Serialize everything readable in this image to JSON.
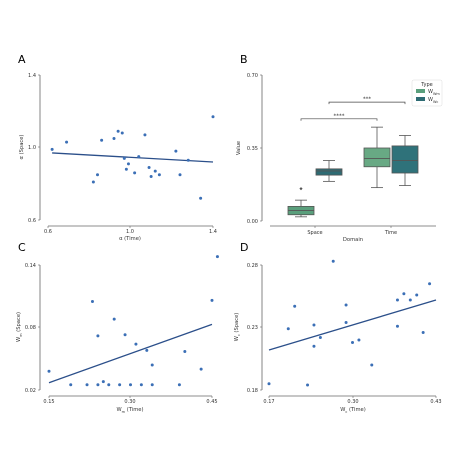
{
  "colors": {
    "point": "#3b6fb6",
    "line": "#2b4f8a",
    "axis": "#666666",
    "box_space_wm": "#5a9f7c",
    "box_space_wc": "#2e6b73",
    "box_time_wm": "#68a984",
    "box_time_wc": "#2f727a",
    "whisker": "#555555"
  },
  "chart_data": [
    {
      "panel": "A",
      "type": "scatter",
      "xlabel": "α (Time)",
      "ylabel": "α (Space)",
      "xlim": [
        0.6,
        1.4
      ],
      "ylim": [
        0.6,
        1.4
      ],
      "xticks": [
        0.6,
        1.0,
        1.4
      ],
      "yticks": [
        0.6,
        1.0,
        1.4
      ],
      "tick_labels_x": [
        "0.6",
        "1.0",
        "1.4"
      ],
      "tick_labels_y": [
        "0.6",
        "1.0",
        "1.4"
      ],
      "points": [
        [
          0.62,
          0.99
        ],
        [
          0.69,
          1.03
        ],
        [
          0.82,
          0.81
        ],
        [
          0.84,
          0.85
        ],
        [
          0.86,
          1.04
        ],
        [
          0.92,
          1.05
        ],
        [
          0.94,
          1.09
        ],
        [
          0.96,
          1.08
        ],
        [
          0.97,
          0.94
        ],
        [
          0.98,
          0.88
        ],
        [
          0.99,
          0.91
        ],
        [
          1.02,
          0.86
        ],
        [
          1.04,
          0.95
        ],
        [
          1.07,
          1.07
        ],
        [
          1.09,
          0.89
        ],
        [
          1.1,
          0.84
        ],
        [
          1.12,
          0.87
        ],
        [
          1.14,
          0.85
        ],
        [
          1.22,
          0.98
        ],
        [
          1.24,
          0.85
        ],
        [
          1.28,
          0.93
        ],
        [
          1.34,
          0.72
        ],
        [
          1.4,
          1.17
        ]
      ],
      "fit_line": [
        [
          0.62,
          0.97
        ],
        [
          1.4,
          0.92
        ]
      ]
    },
    {
      "panel": "B",
      "type": "box",
      "xlabel": "Domain",
      "ylabel": "Value",
      "ylim": [
        0,
        0.7
      ],
      "yticks": [
        0.0,
        0.35,
        0.7
      ],
      "tick_labels_y": [
        "0.00",
        "0.35",
        "0.70"
      ],
      "categories": [
        "Space",
        "Time"
      ],
      "legend": {
        "title": "Type",
        "entries": [
          "Wm",
          "Wc"
        ],
        "position": "top-right"
      },
      "series": [
        {
          "name": "Wm",
          "boxes": [
            {
              "category": "Space",
              "whislo": 0.02,
              "q1": 0.03,
              "med": 0.05,
              "q3": 0.07,
              "whishi": 0.1,
              "fliers": [
                0.155
              ]
            },
            {
              "category": "Time",
              "whislo": 0.16,
              "q1": 0.26,
              "med": 0.3,
              "q3": 0.35,
              "whishi": 0.45,
              "fliers": []
            }
          ]
        },
        {
          "name": "Wc",
          "boxes": [
            {
              "category": "Space",
              "whislo": 0.19,
              "q1": 0.22,
              "med": 0.24,
              "q3": 0.25,
              "whishi": 0.29,
              "fliers": []
            },
            {
              "category": "Time",
              "whislo": 0.17,
              "q1": 0.23,
              "med": 0.29,
              "q3": 0.36,
              "whishi": 0.41,
              "fliers": []
            }
          ]
        }
      ],
      "annotations": [
        {
          "text": "****",
          "from": "Space-Wm",
          "to": "Time-Wm",
          "y": 0.49
        },
        {
          "text": "***",
          "from": "Space-Wc",
          "to": "Time-Wc",
          "y": 0.57
        }
      ]
    },
    {
      "panel": "C",
      "type": "scatter",
      "xlabel": "Wm (Time)",
      "ylabel": "Wm (Space)",
      "xlim": [
        0.15,
        0.45
      ],
      "ylim": [
        0.02,
        0.14
      ],
      "xticks": [
        0.15,
        0.3,
        0.45
      ],
      "yticks": [
        0.02,
        0.08,
        0.14
      ],
      "tick_labels_x": [
        "0.15",
        "0.30",
        "0.45"
      ],
      "tick_labels_y": [
        "0.02",
        "0.08",
        "0.14"
      ],
      "points": [
        [
          0.15,
          0.038
        ],
        [
          0.19,
          0.025
        ],
        [
          0.22,
          0.025
        ],
        [
          0.23,
          0.105
        ],
        [
          0.24,
          0.025
        ],
        [
          0.24,
          0.072
        ],
        [
          0.25,
          0.028
        ],
        [
          0.26,
          0.025
        ],
        [
          0.27,
          0.088
        ],
        [
          0.28,
          0.025
        ],
        [
          0.29,
          0.073
        ],
        [
          0.3,
          0.025
        ],
        [
          0.31,
          0.064
        ],
        [
          0.32,
          0.025
        ],
        [
          0.33,
          0.058
        ],
        [
          0.34,
          0.025
        ],
        [
          0.34,
          0.044
        ],
        [
          0.39,
          0.025
        ],
        [
          0.4,
          0.057
        ],
        [
          0.43,
          0.04
        ],
        [
          0.45,
          0.106
        ],
        [
          0.46,
          0.148
        ]
      ],
      "fit_line": [
        [
          0.15,
          0.027
        ],
        [
          0.45,
          0.083
        ]
      ]
    },
    {
      "panel": "D",
      "type": "scatter",
      "xlabel": "Wc (Time)",
      "ylabel": "Wc (Space)",
      "xlim": [
        0.17,
        0.43
      ],
      "ylim": [
        0.18,
        0.28
      ],
      "xticks": [
        0.17,
        0.3,
        0.43
      ],
      "yticks": [
        0.18,
        0.23,
        0.28
      ],
      "tick_labels_x": [
        "0.17",
        "0.30",
        "0.43"
      ],
      "tick_labels_y": [
        "0.18",
        "0.23",
        "0.28"
      ],
      "points": [
        [
          0.17,
          0.185
        ],
        [
          0.2,
          0.229
        ],
        [
          0.21,
          0.247
        ],
        [
          0.23,
          0.184
        ],
        [
          0.24,
          0.232
        ],
        [
          0.24,
          0.215
        ],
        [
          0.25,
          0.222
        ],
        [
          0.27,
          0.283
        ],
        [
          0.29,
          0.234
        ],
        [
          0.29,
          0.248
        ],
        [
          0.3,
          0.218
        ],
        [
          0.31,
          0.22
        ],
        [
          0.33,
          0.2
        ],
        [
          0.37,
          0.231
        ],
        [
          0.37,
          0.252
        ],
        [
          0.38,
          0.257
        ],
        [
          0.39,
          0.252
        ],
        [
          0.4,
          0.256
        ],
        [
          0.41,
          0.226
        ],
        [
          0.42,
          0.265
        ]
      ],
      "fit_line": [
        [
          0.17,
          0.212
        ],
        [
          0.43,
          0.252
        ]
      ]
    }
  ]
}
